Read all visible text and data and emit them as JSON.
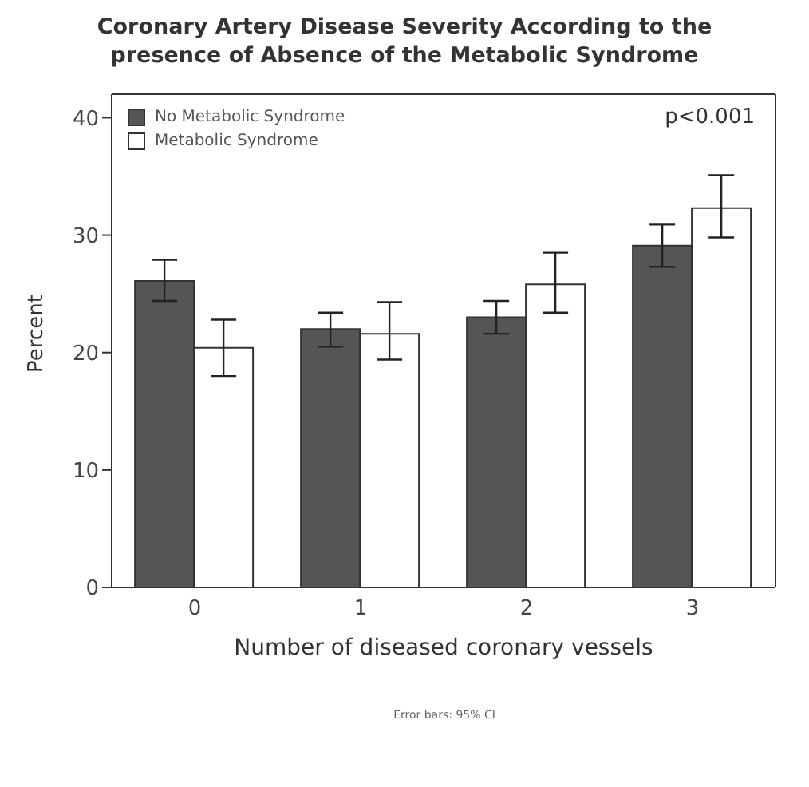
{
  "chart_data": {
    "type": "bar",
    "title": "Coronary Artery Disease Severity According to the presence of Absence of the Metabolic Syndrome",
    "xlabel": "Number of diseased coronary vessels",
    "ylabel": "Percent",
    "categories": [
      "0",
      "1",
      "2",
      "3"
    ],
    "series": [
      {
        "name": "No Metabolic Syndrome",
        "color": "#555555",
        "values": [
          26.1,
          22.0,
          23.0,
          29.1
        ],
        "errors": [
          [
            24.4,
            27.9
          ],
          [
            20.5,
            23.4
          ],
          [
            21.6,
            24.4
          ],
          [
            27.3,
            30.9
          ]
        ]
      },
      {
        "name": "Metabolic Syndrome",
        "color": "#ffffff",
        "values": [
          20.4,
          21.6,
          25.8,
          32.3
        ],
        "errors": [
          [
            18.0,
            22.8
          ],
          [
            19.4,
            24.3
          ],
          [
            23.4,
            28.5
          ],
          [
            29.8,
            35.1
          ]
        ]
      }
    ],
    "ylim": [
      0,
      42
    ],
    "yticks": [
      0,
      10,
      20,
      30,
      40
    ],
    "legend": "top left",
    "annotations": [
      "p<0.001",
      "Error bars: 95% CI"
    ]
  }
}
